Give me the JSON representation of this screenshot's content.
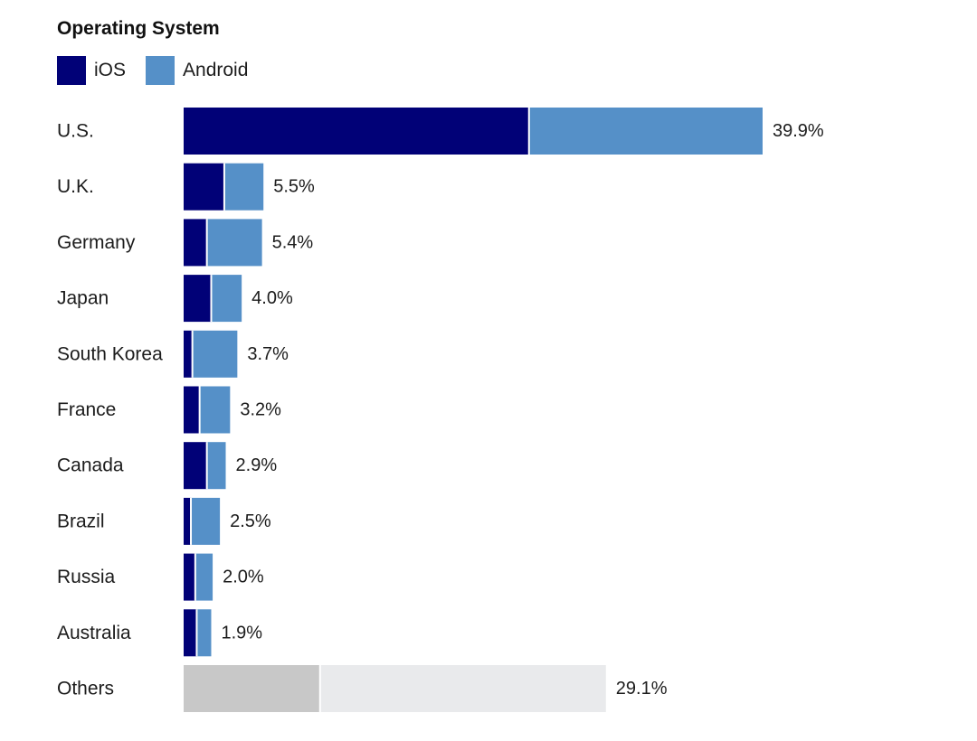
{
  "chart_data": {
    "type": "bar",
    "stacked": true,
    "orientation": "horizontal",
    "title": "Operating System",
    "legend_position": "top-left",
    "grid": false,
    "xlim": [
      0,
      39.9
    ],
    "categories": [
      "U.S.",
      "U.K.",
      "Germany",
      "Japan",
      "South Korea",
      "France",
      "Canada",
      "Brazil",
      "Russia",
      "Australia",
      "Others"
    ],
    "series": [
      {
        "name": "iOS",
        "color": "#010177",
        "values": [
          23.8,
          2.8,
          1.6,
          1.9,
          0.6,
          1.1,
          1.6,
          0.5,
          0.8,
          0.9,
          9.4
        ]
      },
      {
        "name": "Android",
        "color": "#5590c8",
        "values": [
          16.1,
          2.7,
          3.8,
          2.1,
          3.1,
          2.1,
          1.3,
          2.0,
          1.2,
          1.0,
          19.7
        ]
      }
    ],
    "others_colors": [
      "#c8c8c8",
      "#e9eaec"
    ],
    "totals": [
      39.9,
      5.5,
      5.4,
      4.0,
      3.7,
      3.2,
      2.9,
      2.5,
      2.0,
      1.9,
      29.1
    ],
    "value_labels": [
      "39.9%",
      "5.5%",
      "5.4%",
      "4.0%",
      "3.7%",
      "3.2%",
      "2.9%",
      "2.5%",
      "2.0%",
      "1.9%",
      "29.1%"
    ]
  }
}
